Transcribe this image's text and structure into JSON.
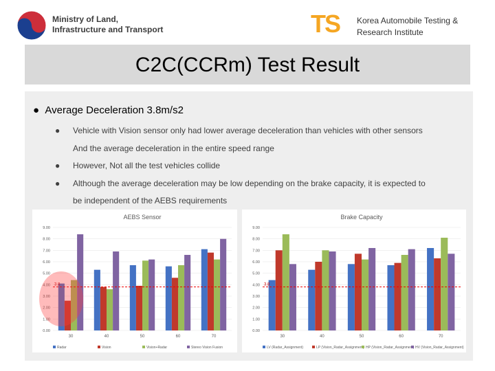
{
  "header": {
    "left_logo_text": [
      "Ministry of Land,",
      "Infrastructure and Transport"
    ],
    "right_logo_mark": "TS",
    "right_logo_text": [
      "Korea Automobile Testing &",
      "Research Institute"
    ]
  },
  "title": "C2C(CCRm) Test Result",
  "bullets": {
    "main": "Average Deceleration 3.8m/s2",
    "lines": [
      {
        "text": "Vehicle with Vision sensor only had lower average deceleration than vehicles with other sensors",
        "bullet": true
      },
      {
        "text": "And the average deceleration in the entire speed range",
        "bullet": false
      },
      {
        "text": "However, Not all the test vehicles collide",
        "bullet": true
      },
      {
        "text": "Although the average deceleration may be low depending on the brake capacity,  it is expected to",
        "bullet": true
      },
      {
        "text": "be independent of the AEBS requirements",
        "bullet": false
      }
    ]
  },
  "chart_data": [
    {
      "type": "bar",
      "title": "AEBS Sensor",
      "categories": [
        "30",
        "40",
        "50",
        "60",
        "70"
      ],
      "series": [
        {
          "name": "Radar",
          "color": "#4472c4",
          "values": [
            4.1,
            5.3,
            5.7,
            5.6,
            7.1
          ]
        },
        {
          "name": "Vision",
          "color": "#c0392b",
          "values": [
            2.6,
            3.8,
            3.9,
            4.6,
            6.8
          ]
        },
        {
          "name": "Vision+Radar",
          "color": "#9bbb59",
          "values": [
            4.4,
            3.6,
            6.1,
            5.7,
            6.2
          ]
        },
        {
          "name": "Stereo Vision Fusion",
          "color": "#8064a2",
          "values": [
            8.4,
            6.9,
            6.2,
            6.6,
            8.0
          ]
        }
      ],
      "ylim": [
        0,
        9
      ],
      "yticks": [
        {
          "value": 0,
          "label": "0.00"
        },
        {
          "value": 1,
          "label": "1.00"
        },
        {
          "value": 2,
          "label": "2.00"
        },
        {
          "value": 3,
          "label": "3.00"
        },
        {
          "value": 4,
          "label": "4.00"
        },
        {
          "value": 5,
          "label": "5.00"
        },
        {
          "value": 6,
          "label": "6.00"
        },
        {
          "value": 7,
          "label": "7.00"
        },
        {
          "value": 8,
          "label": "8.00"
        },
        {
          "value": 9,
          "label": "9.00"
        }
      ],
      "ref_value": 3.8,
      "grid": true
    },
    {
      "type": "bar",
      "title": "Brake Capacity",
      "categories": [
        "30",
        "40",
        "50",
        "60",
        "70"
      ],
      "series": [
        {
          "name": "LV (Radar_Assignment)",
          "color": "#4472c4",
          "values": [
            4.4,
            5.3,
            5.8,
            5.7,
            7.2
          ]
        },
        {
          "name": "LP (Vision_Radar_Assignment)",
          "color": "#c0392b",
          "values": [
            7.0,
            6.0,
            6.7,
            5.9,
            6.3
          ]
        },
        {
          "name": "HP (Vision_Radar_Assignment)",
          "color": "#9bbb59",
          "values": [
            8.4,
            7.0,
            6.2,
            6.6,
            8.1
          ]
        },
        {
          "name": "HV (Vision_Radar_Assignment)",
          "color": "#8064a2",
          "values": [
            5.8,
            6.9,
            7.2,
            7.1,
            6.7
          ]
        }
      ],
      "ylim": [
        0,
        9
      ],
      "yticks": [
        {
          "value": 0,
          "label": "0.00"
        },
        {
          "value": 1,
          "label": "1.00"
        },
        {
          "value": 2,
          "label": "2.00"
        },
        {
          "value": 3,
          "label": "3.00"
        },
        {
          "value": 4,
          "label": "4.00"
        },
        {
          "value": 5,
          "label": "5.00"
        },
        {
          "value": 6,
          "label": "6.00"
        },
        {
          "value": 7,
          "label": "7.00"
        },
        {
          "value": 8,
          "label": "8.00"
        },
        {
          "value": 9,
          "label": "9.00"
        }
      ],
      "ref_value": 3.8,
      "grid": true
    }
  ]
}
